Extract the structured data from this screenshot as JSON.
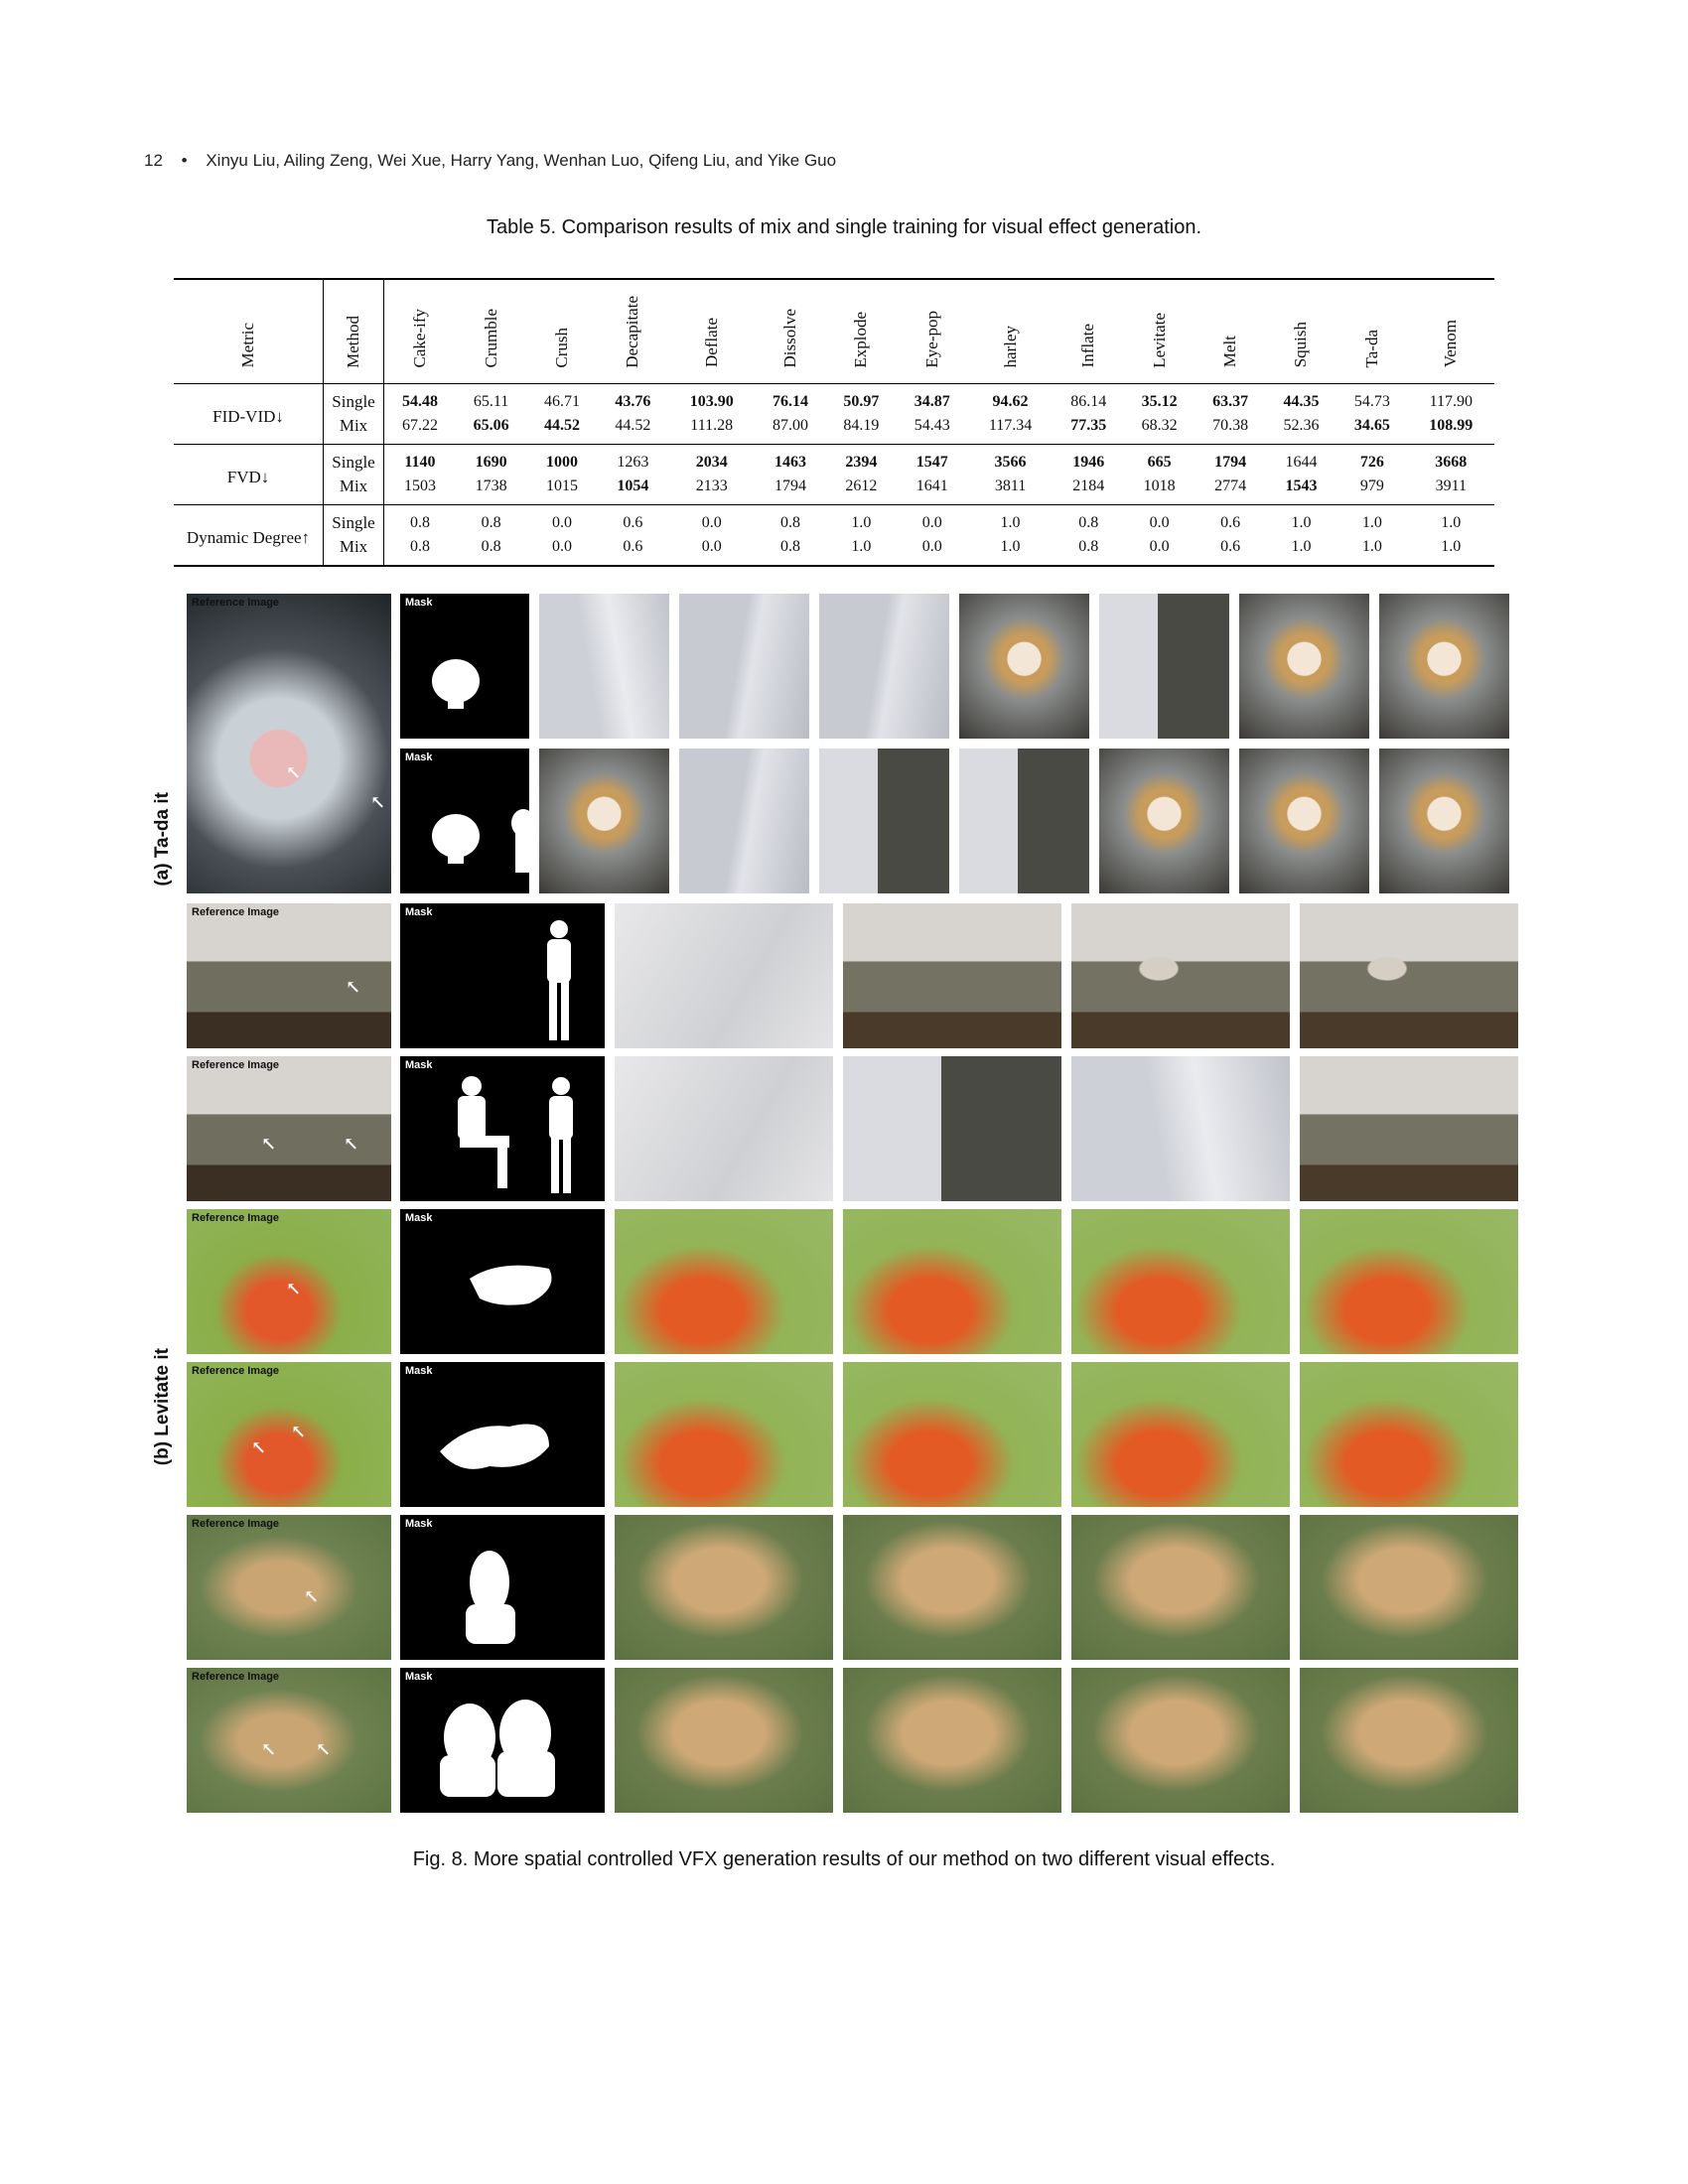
{
  "header": {
    "page_number": "12",
    "separator": "•",
    "authors": "Xinyu Liu, Ailing Zeng, Wei Xue, Harry Yang, Wenhan Luo, Qifeng Liu, and Yike Guo"
  },
  "table": {
    "caption": "Table 5.  Comparison results of mix and single training for visual effect generation.",
    "col_metric": "Metric",
    "col_method": "Method",
    "effects": [
      "Cake-ify",
      "Crumble",
      "Crush",
      "Decapitate",
      "Deflate",
      "Dissolve",
      "Explode",
      "Eye-pop",
      "harley",
      "Inflate",
      "Levitate",
      "Melt",
      "Squish",
      "Ta-da",
      "Venom"
    ],
    "rows": [
      {
        "metric": "FID-VID↓",
        "single_label": "Single",
        "mix_label": "Mix",
        "single": [
          "54.48",
          "65.11",
          "46.71",
          "43.76",
          "103.90",
          "76.14",
          "50.97",
          "34.87",
          "94.62",
          "86.14",
          "35.12",
          "63.37",
          "44.35",
          "54.73",
          "117.90"
        ],
        "mix": [
          "67.22",
          "65.06",
          "44.52",
          "44.52",
          "111.28",
          "87.00",
          "84.19",
          "54.43",
          "117.34",
          "77.35",
          "68.32",
          "70.38",
          "52.36",
          "34.65",
          "108.99"
        ],
        "single_bold": [
          true,
          false,
          false,
          true,
          true,
          true,
          true,
          true,
          true,
          false,
          true,
          true,
          true,
          false,
          false
        ],
        "mix_bold": [
          false,
          true,
          true,
          false,
          false,
          false,
          false,
          false,
          false,
          true,
          false,
          false,
          false,
          true,
          true
        ]
      },
      {
        "metric": "FVD↓",
        "single_label": "Single",
        "mix_label": "Mix",
        "single": [
          "1140",
          "1690",
          "1000",
          "1263",
          "2034",
          "1463",
          "2394",
          "1547",
          "3566",
          "1946",
          "665",
          "1794",
          "1644",
          "726",
          "3668"
        ],
        "mix": [
          "1503",
          "1738",
          "1015",
          "1054",
          "2133",
          "1794",
          "2612",
          "1641",
          "3811",
          "2184",
          "1018",
          "2774",
          "1543",
          "979",
          "3911"
        ],
        "single_bold": [
          true,
          true,
          true,
          false,
          true,
          true,
          true,
          true,
          true,
          true,
          true,
          true,
          false,
          true,
          true
        ],
        "mix_bold": [
          false,
          false,
          false,
          true,
          false,
          false,
          false,
          false,
          false,
          false,
          false,
          false,
          true,
          false,
          false
        ]
      },
      {
        "metric": "Dynamic Degree↑",
        "single_label": "Single",
        "mix_label": "Mix",
        "single": [
          "0.8",
          "0.8",
          "0.0",
          "0.6",
          "0.0",
          "0.8",
          "1.0",
          "0.0",
          "1.0",
          "0.8",
          "0.0",
          "0.6",
          "1.0",
          "1.0",
          "1.0"
        ],
        "mix": [
          "0.8",
          "0.8",
          "0.0",
          "0.6",
          "0.0",
          "0.8",
          "1.0",
          "0.0",
          "1.0",
          "0.8",
          "0.0",
          "0.6",
          "1.0",
          "1.0",
          "1.0"
        ],
        "single_bold": [
          false,
          false,
          false,
          false,
          false,
          false,
          false,
          false,
          false,
          false,
          false,
          false,
          false,
          false,
          false
        ],
        "mix_bold": [
          false,
          false,
          false,
          false,
          false,
          false,
          false,
          false,
          false,
          false,
          false,
          false,
          false,
          false,
          false
        ]
      }
    ]
  },
  "figure": {
    "label_a": "(a) Ta-da it",
    "label_b": "(b) Levitate it",
    "ref_tag": "Reference Image",
    "mask_tag": "Mask",
    "caption": "Fig. 8.  More spatial controlled VFX generation results of our method on two different visual effects."
  }
}
